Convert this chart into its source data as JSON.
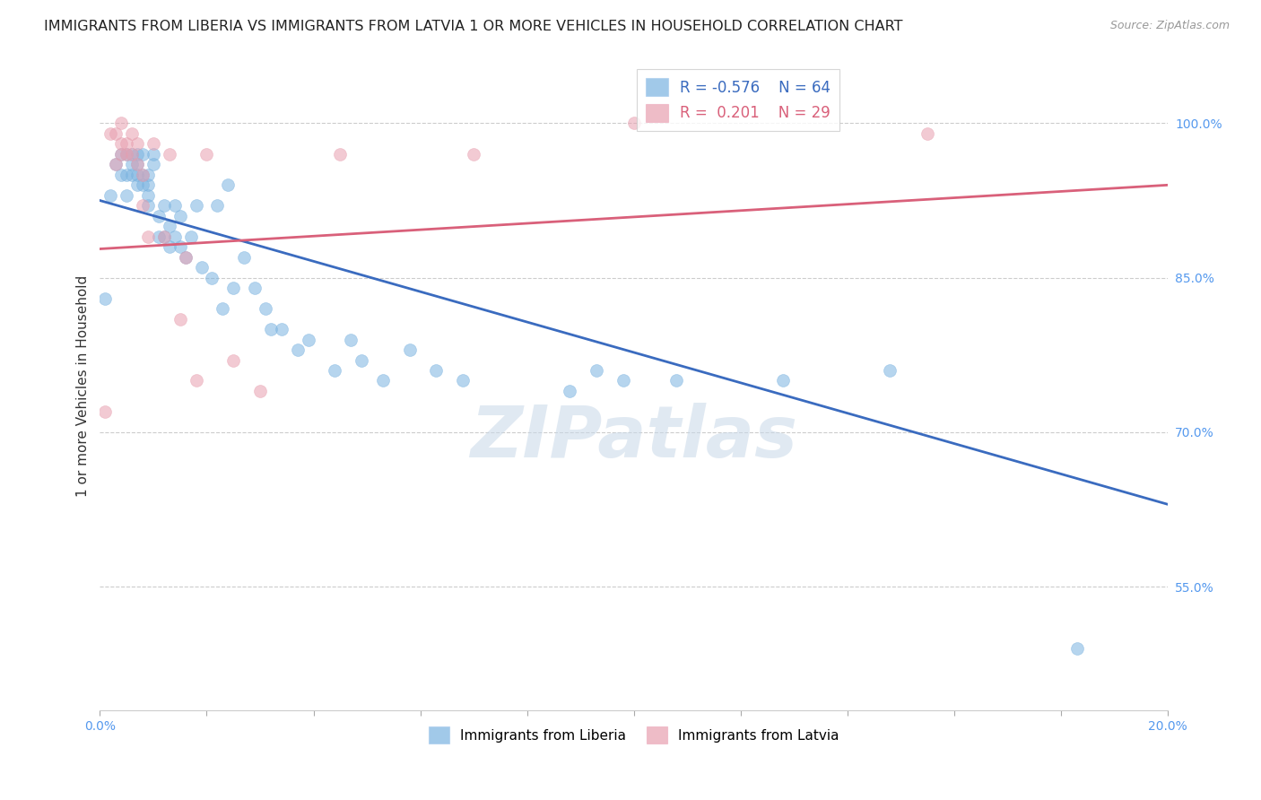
{
  "title": "IMMIGRANTS FROM LIBERIA VS IMMIGRANTS FROM LATVIA 1 OR MORE VEHICLES IN HOUSEHOLD CORRELATION CHART",
  "source": "Source: ZipAtlas.com",
  "ylabel": "1 or more Vehicles in Household",
  "xlim": [
    0.0,
    0.2
  ],
  "ylim": [
    0.43,
    1.06
  ],
  "yticks": [
    0.55,
    0.7,
    0.85,
    1.0
  ],
  "ytick_labels": [
    "55.0%",
    "70.0%",
    "85.0%",
    "100.0%"
  ],
  "xticks": [
    0.0,
    0.02,
    0.04,
    0.06,
    0.08,
    0.1,
    0.12,
    0.14,
    0.16,
    0.18,
    0.2
  ],
  "liberia_R": -0.576,
  "liberia_N": 64,
  "latvia_R": 0.201,
  "latvia_N": 29,
  "liberia_color": "#7ab3e0",
  "latvia_color": "#e8a0b0",
  "liberia_line_color": "#3a6bbf",
  "latvia_line_color": "#d9607a",
  "liberia_x": [
    0.001,
    0.002,
    0.003,
    0.004,
    0.004,
    0.005,
    0.005,
    0.005,
    0.006,
    0.006,
    0.006,
    0.007,
    0.007,
    0.007,
    0.007,
    0.008,
    0.008,
    0.008,
    0.009,
    0.009,
    0.009,
    0.009,
    0.01,
    0.01,
    0.011,
    0.011,
    0.012,
    0.012,
    0.013,
    0.013,
    0.014,
    0.014,
    0.015,
    0.015,
    0.016,
    0.017,
    0.018,
    0.019,
    0.021,
    0.022,
    0.023,
    0.024,
    0.025,
    0.027,
    0.029,
    0.031,
    0.032,
    0.034,
    0.037,
    0.039,
    0.044,
    0.047,
    0.049,
    0.053,
    0.058,
    0.063,
    0.068,
    0.088,
    0.093,
    0.098,
    0.108,
    0.128,
    0.148,
    0.183
  ],
  "liberia_y": [
    0.83,
    0.93,
    0.96,
    0.97,
    0.95,
    0.97,
    0.95,
    0.93,
    0.96,
    0.97,
    0.95,
    0.95,
    0.97,
    0.94,
    0.96,
    0.95,
    0.97,
    0.94,
    0.93,
    0.95,
    0.94,
    0.92,
    0.96,
    0.97,
    0.91,
    0.89,
    0.92,
    0.89,
    0.9,
    0.88,
    0.89,
    0.92,
    0.91,
    0.88,
    0.87,
    0.89,
    0.92,
    0.86,
    0.85,
    0.92,
    0.82,
    0.94,
    0.84,
    0.87,
    0.84,
    0.82,
    0.8,
    0.8,
    0.78,
    0.79,
    0.76,
    0.79,
    0.77,
    0.75,
    0.78,
    0.76,
    0.75,
    0.74,
    0.76,
    0.75,
    0.75,
    0.75,
    0.76,
    0.49
  ],
  "latvia_x": [
    0.001,
    0.002,
    0.003,
    0.003,
    0.004,
    0.004,
    0.004,
    0.005,
    0.005,
    0.006,
    0.006,
    0.007,
    0.007,
    0.008,
    0.008,
    0.009,
    0.01,
    0.012,
    0.013,
    0.015,
    0.016,
    0.018,
    0.02,
    0.025,
    0.03,
    0.045,
    0.07,
    0.1,
    0.155
  ],
  "latvia_y": [
    0.72,
    0.99,
    0.99,
    0.96,
    1.0,
    0.98,
    0.97,
    0.98,
    0.97,
    0.97,
    0.99,
    0.96,
    0.98,
    0.95,
    0.92,
    0.89,
    0.98,
    0.89,
    0.97,
    0.81,
    0.87,
    0.75,
    0.97,
    0.77,
    0.74,
    0.97,
    0.97,
    1.0,
    0.99
  ],
  "liberia_line_x": [
    0.0,
    0.2
  ],
  "liberia_line_y": [
    0.925,
    0.63
  ],
  "latvia_line_x": [
    0.0,
    0.2
  ],
  "latvia_line_y": [
    0.878,
    0.94
  ],
  "marker_size": 100,
  "background_color": "#ffffff",
  "grid_color": "#cccccc",
  "title_fontsize": 11.5,
  "label_fontsize": 11,
  "tick_fontsize": 10,
  "watermark_text": "ZIPatlas",
  "watermark_color": "#c8d8e8",
  "watermark_alpha": 0.55
}
